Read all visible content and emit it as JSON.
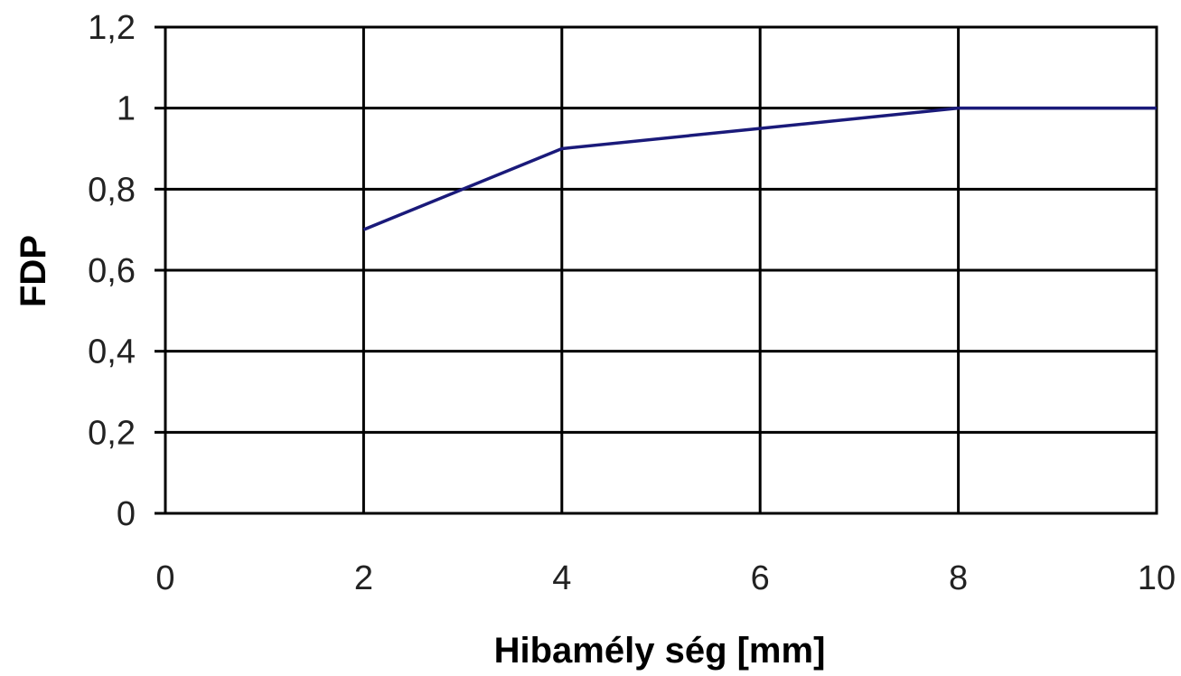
{
  "chart_data": {
    "type": "line",
    "title": "",
    "xlabel": "Hibamély ség [mm]",
    "ylabel": "FDP",
    "xlim": [
      0,
      10
    ],
    "ylim": [
      0,
      1.2
    ],
    "x_ticks": [
      0,
      2,
      4,
      6,
      8,
      10
    ],
    "x_tick_labels": [
      "0",
      "2",
      "4",
      "6",
      "8",
      "10"
    ],
    "y_ticks": [
      0,
      0.2,
      0.4,
      0.6,
      0.8,
      1.0,
      1.2
    ],
    "y_tick_labels": [
      "0",
      "0,2",
      "0,4",
      "0,6",
      "0,8",
      "1",
      "1,2"
    ],
    "grid": true,
    "legend": "none",
    "series": [
      {
        "x": [
          2,
          4,
          6,
          8,
          10
        ],
        "y": [
          0.7,
          0.9,
          0.95,
          1.0,
          1.0
        ],
        "color": "#1a1a7a"
      }
    ]
  }
}
